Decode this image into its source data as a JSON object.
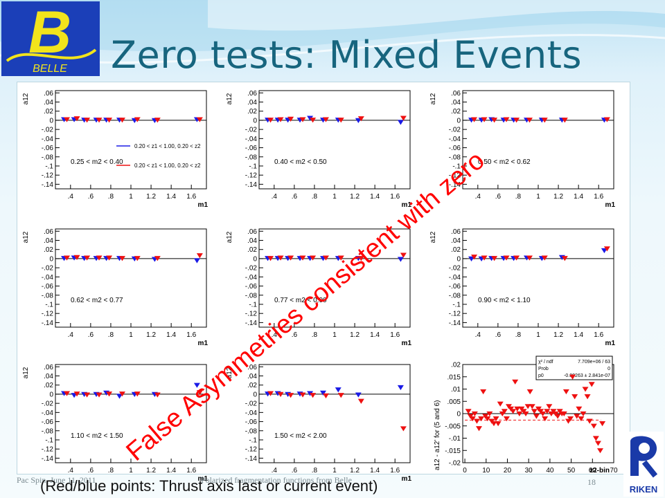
{
  "slide": {
    "title": "Zero tests: Mixed Events",
    "annotation": "False Asymmetries consistent with zero",
    "bottom_note": "(Red/blue points: Thrust axis last or current event)",
    "footer_left": "Pac Spin, June 11, 2011",
    "footer_center": "Polarized fragmentation functions from Belle",
    "page_number": "18",
    "logo_belle_letter": "B",
    "logo_belle_text": "BELLE",
    "logo_riken_text": "RIKEN",
    "colors": {
      "title": "#17657e",
      "annotation": "#ff0000",
      "blue": "#1a1ae6",
      "red": "#ee1111"
    }
  },
  "chart_data": [
    {
      "type": "scatter",
      "panel": 1,
      "ylabel": "a12",
      "xlabel": "m1",
      "label": "0.25 < m2 < 0.40",
      "xlim": [
        0.25,
        1.75
      ],
      "ylim": [
        -0.15,
        0.065
      ],
      "xticks": [
        0.4,
        0.6,
        0.8,
        1,
        1.2,
        1.4,
        1.6
      ],
      "yticks": [
        0.06,
        0.04,
        0.02,
        0,
        -0.02,
        -0.04,
        -0.06,
        -0.08,
        -0.1,
        -0.12,
        -0.14
      ],
      "legend": [
        "0.20 < z1 < 1.00, 0.20 < z2",
        "0.20 < z1 < 1.00, 0.20 < z2"
      ],
      "series": [
        {
          "color": "blue",
          "x": [
            0.35,
            0.45,
            0.55,
            0.67,
            0.77,
            0.9,
            1.05,
            1.25,
            1.67
          ],
          "y": [
            0.002,
            0.002,
            0.001,
            0.001,
            0.001,
            0.001,
            0.0,
            0.0,
            0.002
          ]
        },
        {
          "color": "red",
          "x": [
            0.35,
            0.45,
            0.55,
            0.67,
            0.77,
            0.9,
            1.05,
            1.25,
            1.67
          ],
          "y": [
            0.002,
            0.004,
            0.001,
            0.001,
            0.001,
            0.001,
            0.002,
            0.001,
            0.002
          ]
        }
      ]
    },
    {
      "type": "scatter",
      "panel": 2,
      "ylabel": "a12",
      "xlabel": "m1",
      "label": "0.40 < m2 < 0.50",
      "xlim": [
        0.25,
        1.75
      ],
      "ylim": [
        -0.15,
        0.065
      ],
      "xticks": [
        0.4,
        0.6,
        0.8,
        1,
        1.2,
        1.4,
        1.6
      ],
      "yticks": [
        0.06,
        0.04,
        0.02,
        0,
        -0.02,
        -0.04,
        -0.06,
        -0.08,
        -0.1,
        -0.12,
        -0.14
      ],
      "series": [
        {
          "color": "blue",
          "x": [
            0.35,
            0.45,
            0.55,
            0.67,
            0.77,
            0.9,
            1.05,
            1.25,
            1.67
          ],
          "y": [
            0.001,
            0.001,
            0.001,
            0.001,
            0.005,
            0.001,
            0.001,
            0.0,
            -0.004
          ]
        },
        {
          "color": "red",
          "x": [
            0.35,
            0.45,
            0.55,
            0.67,
            0.77,
            0.9,
            1.05,
            1.25,
            1.67
          ],
          "y": [
            0.001,
            0.002,
            0.003,
            0.002,
            0.001,
            0.002,
            0.001,
            0.004,
            0.005
          ]
        }
      ]
    },
    {
      "type": "scatter",
      "panel": 3,
      "ylabel": "a12",
      "xlabel": "m1",
      "label": "0.50 < m2 < 0.62",
      "xlim": [
        0.25,
        1.75
      ],
      "ylim": [
        -0.15,
        0.065
      ],
      "xticks": [
        0.4,
        0.6,
        0.8,
        1,
        1.2,
        1.4,
        1.6
      ],
      "yticks": [
        0.06,
        0.04,
        0.02,
        0,
        -0.02,
        -0.04,
        -0.06,
        -0.08,
        -0.1,
        -0.12,
        -0.14
      ],
      "series": [
        {
          "color": "blue",
          "x": [
            0.35,
            0.45,
            0.55,
            0.67,
            0.77,
            0.9,
            1.05,
            1.25,
            1.67
          ],
          "y": [
            0.001,
            0.001,
            0.002,
            0.001,
            0.001,
            0.001,
            0.001,
            0.001,
            0.001
          ]
        },
        {
          "color": "red",
          "x": [
            0.35,
            0.45,
            0.55,
            0.67,
            0.77,
            0.9,
            1.05,
            1.25,
            1.67
          ],
          "y": [
            0.002,
            0.002,
            0.001,
            0.002,
            0.001,
            0.001,
            0.001,
            0.001,
            0.002
          ]
        }
      ]
    },
    {
      "type": "scatter",
      "panel": 4,
      "ylabel": "a12",
      "xlabel": "m1",
      "label": "0.62 < m2 < 0.77",
      "xlim": [
        0.25,
        1.75
      ],
      "ylim": [
        -0.15,
        0.065
      ],
      "xticks": [
        0.4,
        0.6,
        0.8,
        1,
        1.2,
        1.4,
        1.6
      ],
      "yticks": [
        0.06,
        0.04,
        0.02,
        0,
        -0.02,
        -0.04,
        -0.06,
        -0.08,
        -0.1,
        -0.12,
        -0.14
      ],
      "series": [
        {
          "color": "blue",
          "x": [
            0.35,
            0.45,
            0.55,
            0.67,
            0.77,
            0.9,
            1.05,
            1.25,
            1.67
          ],
          "y": [
            0.001,
            0.002,
            0.001,
            0.001,
            0.001,
            0.001,
            0.0,
            -0.001,
            -0.004
          ]
        },
        {
          "color": "red",
          "x": [
            0.35,
            0.45,
            0.55,
            0.67,
            0.77,
            0.9,
            1.05,
            1.25,
            1.67
          ],
          "y": [
            0.002,
            0.003,
            0.002,
            0.002,
            0.002,
            0.001,
            0.001,
            0.001,
            0.007
          ]
        }
      ]
    },
    {
      "type": "scatter",
      "panel": 5,
      "ylabel": "a12",
      "xlabel": "m1",
      "label": "0.77 < m2 < 0.90",
      "xlim": [
        0.25,
        1.75
      ],
      "ylim": [
        -0.15,
        0.065
      ],
      "xticks": [
        0.4,
        0.6,
        0.8,
        1,
        1.2,
        1.4,
        1.6
      ],
      "yticks": [
        0.06,
        0.04,
        0.02,
        0,
        -0.02,
        -0.04,
        -0.06,
        -0.08,
        -0.1,
        -0.12,
        -0.14
      ],
      "series": [
        {
          "color": "blue",
          "x": [
            0.35,
            0.45,
            0.55,
            0.67,
            0.77,
            0.9,
            1.05,
            1.25,
            1.67
          ],
          "y": [
            0.001,
            0.001,
            0.001,
            0.001,
            0.001,
            0.001,
            0.001,
            0.001,
            -0.001
          ]
        },
        {
          "color": "red",
          "x": [
            0.35,
            0.45,
            0.55,
            0.67,
            0.77,
            0.9,
            1.05,
            1.25,
            1.67
          ],
          "y": [
            0.001,
            0.002,
            0.002,
            0.002,
            0.002,
            0.002,
            0.002,
            0.001,
            0.008
          ]
        }
      ]
    },
    {
      "type": "scatter",
      "panel": 6,
      "ylabel": "a12",
      "xlabel": "m1",
      "label": "0.90 < m2 < 1.10",
      "xlim": [
        0.25,
        1.75
      ],
      "ylim": [
        -0.15,
        0.065
      ],
      "xticks": [
        0.4,
        0.6,
        0.8,
        1,
        1.2,
        1.4,
        1.6
      ],
      "yticks": [
        0.06,
        0.04,
        0.02,
        0,
        -0.02,
        -0.04,
        -0.06,
        -0.08,
        -0.1,
        -0.12,
        -0.14
      ],
      "series": [
        {
          "color": "blue",
          "x": [
            0.35,
            0.45,
            0.55,
            0.67,
            0.77,
            0.9,
            1.05,
            1.25,
            1.67
          ],
          "y": [
            0.0,
            0.0,
            0.001,
            0.001,
            0.001,
            0.002,
            0.001,
            0.003,
            0.018
          ]
        },
        {
          "color": "red",
          "x": [
            0.35,
            0.45,
            0.55,
            0.67,
            0.77,
            0.9,
            1.05,
            1.25,
            1.67
          ],
          "y": [
            0.004,
            0.002,
            0.001,
            0.002,
            0.002,
            0.002,
            0.002,
            0.001,
            0.022
          ]
        }
      ]
    },
    {
      "type": "scatter",
      "panel": 7,
      "ylabel": "a12",
      "xlabel": "m1",
      "label": "1.10 < m2 < 1.50",
      "xlim": [
        0.25,
        1.75
      ],
      "ylim": [
        -0.15,
        0.065
      ],
      "xticks": [
        0.4,
        0.6,
        0.8,
        1,
        1.2,
        1.4,
        1.6
      ],
      "yticks": [
        0.06,
        0.04,
        0.02,
        0,
        -0.02,
        -0.04,
        -0.06,
        -0.08,
        -0.1,
        -0.12,
        -0.14
      ],
      "series": [
        {
          "color": "blue",
          "x": [
            0.35,
            0.45,
            0.55,
            0.67,
            0.77,
            0.9,
            1.05,
            1.25,
            1.67
          ],
          "y": [
            0.002,
            -0.002,
            0.0,
            0.0,
            0.003,
            -0.004,
            0.0,
            0.0,
            0.02
          ]
        },
        {
          "color": "red",
          "x": [
            0.35,
            0.45,
            0.55,
            0.67,
            0.77,
            0.9,
            1.05,
            1.25,
            1.67
          ],
          "y": [
            0.002,
            0.001,
            -0.001,
            -0.001,
            0.001,
            0.001,
            0.001,
            -0.001,
            0.004
          ]
        }
      ]
    },
    {
      "type": "scatter",
      "panel": 8,
      "ylabel": "a12",
      "xlabel": "m1",
      "label": "1.50 < m2 < 2.00",
      "xlim": [
        0.25,
        1.75
      ],
      "ylim": [
        -0.15,
        0.065
      ],
      "xticks": [
        0.4,
        0.6,
        0.8,
        1,
        1.2,
        1.4,
        1.6
      ],
      "yticks": [
        0.06,
        0.04,
        0.02,
        0,
        -0.02,
        -0.04,
        -0.06,
        -0.08,
        -0.1,
        -0.12,
        -0.14
      ],
      "series": [
        {
          "color": "blue",
          "x": [
            0.35,
            0.45,
            0.55,
            0.67,
            0.77,
            0.9,
            1.05,
            1.25,
            1.67
          ],
          "y": [
            0.001,
            0.002,
            0.0,
            0.001,
            0.002,
            0.003,
            0.01,
            -0.001,
            0.015
          ]
        },
        {
          "color": "red",
          "x": [
            0.35,
            0.45,
            0.55,
            0.67,
            0.77,
            0.9,
            1.05,
            1.25,
            1.67
          ],
          "y": [
            0.002,
            0.0,
            -0.002,
            -0.001,
            -0.002,
            -0.003,
            -0.002,
            -0.015,
            -0.075
          ]
        }
      ]
    },
    {
      "type": "scatter",
      "panel": 9,
      "ylabel": "a12 - a12' for (5 and 6)",
      "xlabel": "z2-bin",
      "xlim": [
        -1,
        70
      ],
      "ylim": [
        -0.02,
        0.02
      ],
      "xticks": [
        0,
        10,
        20,
        30,
        40,
        50,
        60,
        70
      ],
      "yticks": [
        0.02,
        0.015,
        0.01,
        0.005,
        0,
        -0.005,
        -0.01,
        -0.015,
        -0.02
      ],
      "fit_box": {
        "rows": [
          [
            "χ² / ndf",
            "7.709e+06 / 63"
          ],
          [
            "Prob",
            "0"
          ],
          [
            "p0",
            "-0.00263 ± 2.841e-07"
          ]
        ]
      },
      "fit_p0": -0.00263,
      "series": [
        {
          "color": "red",
          "x": [
            1,
            2,
            3,
            4,
            5,
            6,
            7,
            8,
            9,
            10,
            11,
            12,
            13,
            14,
            15,
            16,
            17,
            18,
            19,
            20,
            21,
            22,
            23,
            24,
            25,
            26,
            27,
            28,
            29,
            30,
            31,
            32,
            33,
            34,
            35,
            36,
            37,
            38,
            39,
            40,
            41,
            42,
            43,
            44,
            45,
            46,
            47,
            48,
            49,
            50,
            51,
            52,
            53,
            54,
            55,
            56,
            57,
            58,
            59,
            60,
            61,
            62,
            63,
            64
          ],
          "y": [
            0.001,
            -0.001,
            -0.002,
            0.0,
            -0.003,
            -0.006,
            -0.002,
            0.009,
            -0.001,
            -0.002,
            0.0,
            -0.003,
            -0.004,
            -0.002,
            -0.004,
            0.004,
            0.0,
            0.001,
            -0.002,
            0.003,
            0.002,
            0.001,
            0.013,
            0.002,
            0.0,
            0.002,
            0.001,
            0.0,
            0.003,
            0.009,
            0.003,
            0.001,
            -0.001,
            0.002,
            0.001,
            0.0,
            -0.002,
            0.001,
            0.003,
            0.0,
            0.001,
            0.0,
            -0.001,
            0.001,
            0.0,
            0.0,
            0.009,
            -0.003,
            -0.002,
            0.015,
            0.007,
            -0.001,
            0.002,
            -0.002,
            0.0,
            0.01,
            0.007,
            -0.003,
            0.012,
            -0.005,
            -0.01,
            -0.012,
            -0.015,
            -0.004
          ]
        }
      ]
    }
  ]
}
